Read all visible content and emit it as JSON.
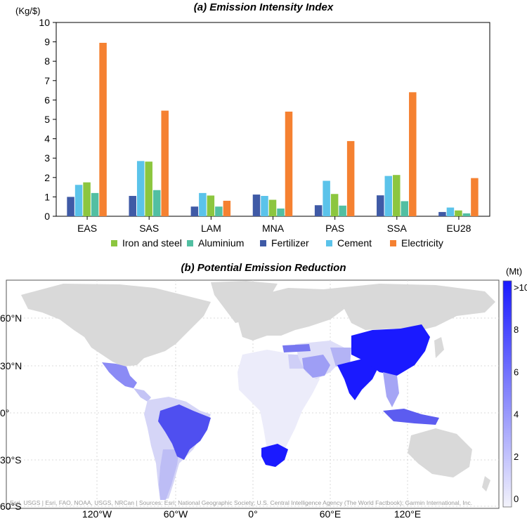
{
  "panel_a": {
    "title": "(a) Emission Intensity Index",
    "unit": "(Kg/$)"
  },
  "panel_b": {
    "title": "(b) Potential Emission Reduction",
    "unit": "(Mt)",
    "colorbar_ticks": [
      ">10",
      "8",
      "6",
      "4",
      "2",
      "0"
    ],
    "lat_labels": [
      "60°N",
      "30°N",
      "0°",
      "30°S",
      "60°S"
    ],
    "lon_labels": [
      "120°W",
      "60°W",
      "0°",
      "60°E",
      "120°E"
    ],
    "credit": "Esri, USGS | Esri, FAO, NOAA, USGS, NRCan | Sources: Esri; National Geographic Society; U.S. Central Intelligence Agency (The World Factbook); Garmin International, Inc."
  },
  "colors": {
    "Fertilizer": "#3f5aa6",
    "Cement": "#5bc3ea",
    "Iron and steel": "#8cc63f",
    "Aluminium": "#52bfa2",
    "Electricity": "#f58131",
    "land": "#d9d9d9",
    "scale_high": "#1a1aff",
    "scale_low": "#f3f3fb"
  },
  "chart_data": [
    {
      "type": "bar",
      "title": "(a) Emission Intensity Index",
      "ylabel": "(Kg/$)",
      "ylim": [
        0,
        10
      ],
      "yticks": [
        0,
        1,
        2,
        3,
        4,
        5,
        6,
        7,
        8,
        9,
        10
      ],
      "grid": false,
      "legend": "bottom",
      "categories": [
        "EAS",
        "SAS",
        "LAM",
        "MNA",
        "PAS",
        "SSA",
        "EU28"
      ],
      "bar_order": [
        "Fertilizer",
        "Cement",
        "Iron and steel",
        "Aluminium",
        "Electricity"
      ],
      "legend_order": [
        "Iron and steel",
        "Aluminium",
        "Fertilizer",
        "Cement",
        "Electricity"
      ],
      "series": [
        {
          "name": "Iron and steel",
          "values": [
            1.75,
            2.82,
            1.07,
            0.85,
            1.15,
            2.13,
            0.3
          ]
        },
        {
          "name": "Aluminium",
          "values": [
            1.2,
            1.35,
            0.5,
            0.4,
            0.55,
            0.78,
            0.15
          ]
        },
        {
          "name": "Fertilizer",
          "values": [
            1.0,
            1.05,
            0.5,
            1.12,
            0.57,
            1.08,
            0.22
          ]
        },
        {
          "name": "Cement",
          "values": [
            1.62,
            2.85,
            1.2,
            1.05,
            1.83,
            2.08,
            0.45
          ]
        },
        {
          "name": "Electricity",
          "values": [
            8.95,
            5.45,
            0.8,
            5.4,
            3.88,
            6.4,
            1.97
          ]
        }
      ]
    },
    {
      "type": "heatmap",
      "title": "(b) Potential Emission Reduction",
      "colorbar_label": "(Mt)",
      "colorbar_range": [
        0,
        10
      ],
      "regions": [
        {
          "name": "China",
          "value": 10
        },
        {
          "name": "India",
          "value": 10
        },
        {
          "name": "South Africa",
          "value": 10
        },
        {
          "name": "Brazil",
          "value": 7
        },
        {
          "name": "Indonesia",
          "value": 6
        },
        {
          "name": "Mexico",
          "value": 4
        },
        {
          "name": "Turkey",
          "value": 5
        },
        {
          "name": "Saudi Arabia",
          "value": 4
        },
        {
          "name": "Thailand",
          "value": 3
        },
        {
          "name": "Vietnam",
          "value": 4
        },
        {
          "name": "Pakistan",
          "value": 3
        },
        {
          "name": "Iran",
          "value": 2
        },
        {
          "name": "Egypt",
          "value": 2
        },
        {
          "name": "Argentina",
          "value": 1.5
        },
        {
          "name": "Rest of South America",
          "value": 1
        },
        {
          "name": "Rest of Africa",
          "value": 0.5
        },
        {
          "name": "Rest of Middle East",
          "value": 1
        }
      ]
    }
  ]
}
